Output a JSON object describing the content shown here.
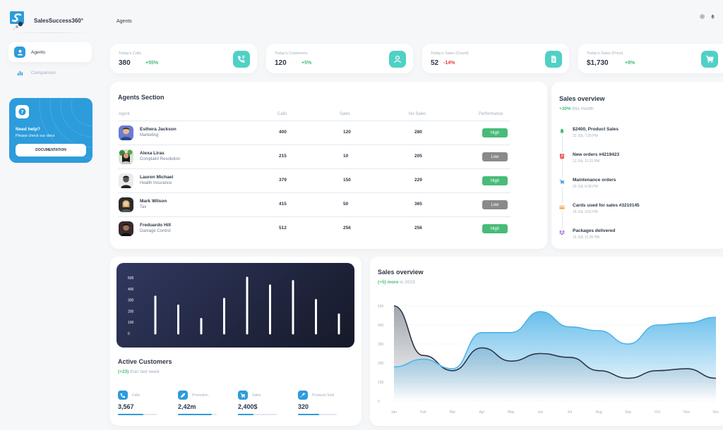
{
  "brand": {
    "name": "SalesSuccess360°"
  },
  "sidebar": {
    "items": [
      {
        "label": "Agents",
        "active": true
      },
      {
        "label": "Comparison",
        "active": false
      }
    ],
    "help": {
      "title": "Need help?",
      "subtitle": "Please check our docs",
      "button": "DOCUMENTATION"
    }
  },
  "header": {
    "title": "Agents",
    "icons": [
      "gear-icon",
      "bell-icon"
    ]
  },
  "stats": [
    {
      "label": "Today's Calls",
      "value": "380",
      "change": "+55%",
      "positive": true,
      "icon": "phone-icon"
    },
    {
      "label": "Today's Customers",
      "value": "120",
      "change": "+5%",
      "positive": true,
      "icon": "user-icon"
    },
    {
      "label": "Today's Sales (Count)",
      "value": "52",
      "change": "-14%",
      "positive": false,
      "icon": "document-icon"
    },
    {
      "label": "Today's Sales (Price)",
      "value": "$1,730",
      "change": "+8%",
      "positive": true,
      "icon": "cart-icon"
    }
  ],
  "agents": {
    "title": "Agents Section",
    "columns": [
      "Agent",
      "Calls",
      "Sales",
      "No Sales",
      "Performance"
    ],
    "rows": [
      {
        "name": "Esthera Jackson",
        "dept": "Marketing",
        "calls": "400",
        "sales": "120",
        "no_sales": "280",
        "performance": "High"
      },
      {
        "name": "Alexa Liras",
        "dept": "Complaint Resolution",
        "calls": "215",
        "sales": "10",
        "no_sales": "205",
        "performance": "Low"
      },
      {
        "name": "Lauren Michael",
        "dept": "Health Insurance",
        "calls": "379",
        "sales": "150",
        "no_sales": "229",
        "performance": "High"
      },
      {
        "name": "Mark Wilson",
        "dept": "Tax",
        "calls": "415",
        "sales": "50",
        "no_sales": "365",
        "performance": "Low"
      },
      {
        "name": "Freduardo Hill",
        "dept": "Damage Control",
        "calls": "512",
        "sales": "256",
        "no_sales": "256",
        "performance": "High"
      }
    ],
    "colors": {
      "high": "#48bb78",
      "low": "#8a8a8a"
    }
  },
  "timeline": {
    "title": "Sales overview",
    "subtitle_change": "+30%",
    "subtitle_rest": " this month",
    "items": [
      {
        "title": "$2400, Product Sales",
        "date": "22 JUL 7:20 PM",
        "icon": "bell-icon",
        "color": "#48bb78"
      },
      {
        "title": "New orders #4219423",
        "date": "21 JUL 11:21 PM",
        "icon": "html5-icon",
        "color": "#e53e3e"
      },
      {
        "title": "Maintenance orders",
        "date": "20 JUL 9:28 PM",
        "icon": "cart-icon",
        "color": "#4299e1"
      },
      {
        "title": "Cards used for sales #3210145",
        "date": "19 JUL 3:52 PM",
        "icon": "credit-card-icon",
        "color": "#f6ad55"
      },
      {
        "title": "Packages delivered",
        "date": "15 JUL 11:35 PM",
        "icon": "dropbox-icon",
        "color": "#9f7aea"
      }
    ]
  },
  "active_customers": {
    "title": "Active Customers",
    "subtitle_change": "(+23)",
    "subtitle_rest": " than last week",
    "stats": [
      {
        "label": "Calls",
        "value": "3,567",
        "progress": 0.65,
        "icon": "phone-icon"
      },
      {
        "label": "Promotion",
        "value": "2,42m",
        "progress": 0.88,
        "icon": "rocket-icon"
      },
      {
        "label": "Sales",
        "value": "2,400$",
        "progress": 0.4,
        "icon": "cart-icon"
      },
      {
        "label": "Products Sold",
        "value": "320",
        "progress": 0.55,
        "icon": "wrench-icon"
      }
    ]
  },
  "area_chart": {
    "title": "Sales overview",
    "subtitle_change": "(+5) more",
    "subtitle_rest": " in 2023"
  },
  "chart_data": [
    {
      "type": "bar",
      "yticks": [
        "500",
        "400",
        "300",
        "200",
        "100",
        "0"
      ],
      "ylim": [
        0,
        500
      ],
      "values": [
        330,
        250,
        130,
        310,
        500,
        430,
        470,
        300,
        170
      ],
      "grid": false,
      "color": "#ffffff"
    },
    {
      "type": "area",
      "categories": [
        "Jan",
        "Feb",
        "Mar",
        "Apr",
        "May",
        "Jun",
        "Jul",
        "Aug",
        "Sep",
        "Oct",
        "Nov",
        "Dec"
      ],
      "yticks": [
        "500",
        "400",
        "300",
        "200",
        "100",
        "0"
      ],
      "ylim": [
        0,
        500
      ],
      "series": [
        {
          "values": [
            180,
            220,
            170,
            360,
            360,
            470,
            390,
            370,
            300,
            400,
            410,
            440
          ],
          "color": "#4fb3e8"
        },
        {
          "values": [
            500,
            240,
            160,
            280,
            210,
            250,
            230,
            160,
            120,
            160,
            170,
            120
          ],
          "color": "#2d3748"
        }
      ],
      "grid": true
    }
  ]
}
